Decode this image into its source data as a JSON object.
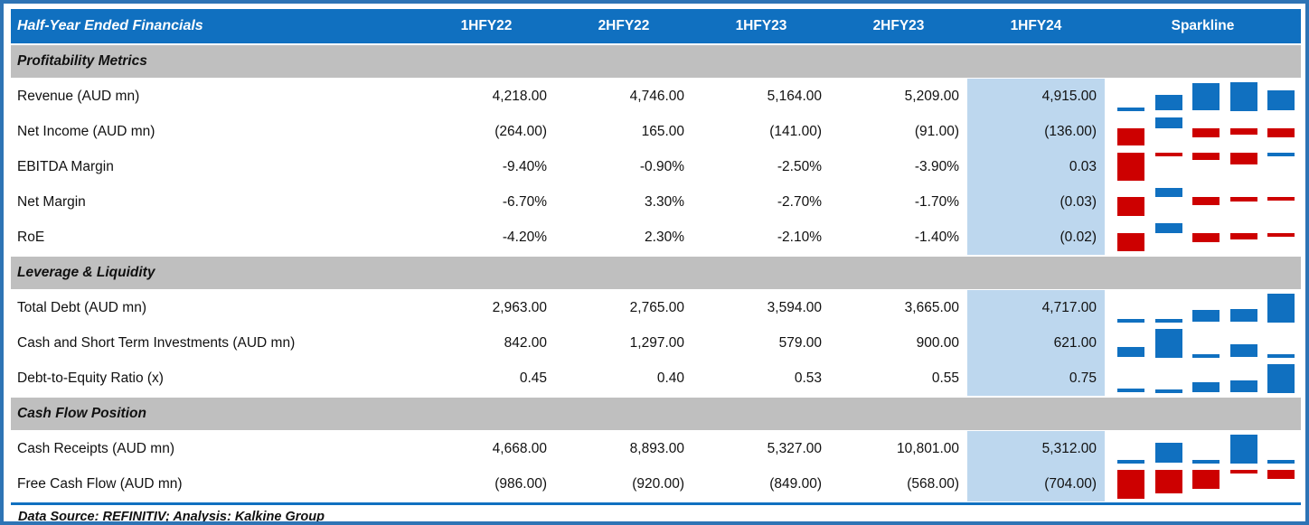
{
  "header": {
    "title": "Half-Year Ended Financials",
    "periods": [
      "1HFY22",
      "2HFY22",
      "1HFY23",
      "2HFY23",
      "1HFY24"
    ],
    "sparkline_label": "Sparkline",
    "highlight_period": "1HFY24"
  },
  "sections": [
    {
      "label": "Profitability Metrics",
      "rows": [
        {
          "label": "Revenue (AUD mn)",
          "display": [
            "4,218.00",
            "4,746.00",
            "5,164.00",
            "5,209.00",
            "4,915.00"
          ],
          "numeric": [
            4218,
            4746,
            5164,
            5209,
            4915
          ]
        },
        {
          "label": "Net Income (AUD mn)",
          "display": [
            "(264.00)",
            "165.00",
            "(141.00)",
            "(91.00)",
            "(136.00)"
          ],
          "numeric": [
            -264,
            165,
            -141,
            -91,
            -136
          ]
        },
        {
          "label": "EBITDA Margin",
          "display": [
            "-9.40%",
            "-0.90%",
            "-2.50%",
            "-3.90%",
            "0.03"
          ],
          "numeric": [
            -9.4,
            -0.9,
            -2.5,
            -3.9,
            0.03
          ]
        },
        {
          "label": "Net Margin",
          "display": [
            "-6.70%",
            "3.30%",
            "-2.70%",
            "-1.70%",
            "(0.03)"
          ],
          "numeric": [
            -6.7,
            3.3,
            -2.7,
            -1.7,
            -0.03
          ]
        },
        {
          "label": "RoE",
          "display": [
            "-4.20%",
            "2.30%",
            "-2.10%",
            "-1.40%",
            "(0.02)"
          ],
          "numeric": [
            -4.2,
            2.3,
            -2.1,
            -1.4,
            -0.02
          ]
        }
      ]
    },
    {
      "label": "Leverage & Liquidity",
      "rows": [
        {
          "label": "Total Debt (AUD mn)",
          "display": [
            "2,963.00",
            "2,765.00",
            "3,594.00",
            "3,665.00",
            "4,717.00"
          ],
          "numeric": [
            2963,
            2765,
            3594,
            3665,
            4717
          ]
        },
        {
          "label": "Cash and Short Term Investments (AUD mn)",
          "display": [
            "842.00",
            "1,297.00",
            "579.00",
            "900.00",
            "621.00"
          ],
          "numeric": [
            842,
            1297,
            579,
            900,
            621
          ]
        },
        {
          "label": "Debt-to-Equity Ratio (x)",
          "display": [
            "0.45",
            "0.40",
            "0.53",
            "0.55",
            "0.75"
          ],
          "numeric": [
            0.45,
            0.4,
            0.53,
            0.55,
            0.75
          ]
        }
      ]
    },
    {
      "label": "Cash Flow Position",
      "rows": [
        {
          "label": "Cash Receipts (AUD mn)",
          "display": [
            "4,668.00",
            "8,893.00",
            "5,327.00",
            "10,801.00",
            "5,312.00"
          ],
          "numeric": [
            4668,
            8893,
            5327,
            10801,
            5312
          ]
        },
        {
          "label": "Free Cash Flow (AUD mn)",
          "display": [
            "(986.00)",
            "(920.00)",
            "(849.00)",
            "(568.00)",
            "(704.00)"
          ],
          "numeric": [
            -986,
            -920,
            -849,
            -568,
            -704
          ]
        }
      ]
    }
  ],
  "footer": {
    "note": "Data Source: REFINITIV; Analysis: Kalkine Group"
  },
  "colors": {
    "header_bg": "#1070C0",
    "section_bg": "#BFBFBF",
    "highlight_bg": "#BDD7EE",
    "spark_positive": "#1070C0",
    "spark_negative": "#CD0000",
    "outer_border": "#2E74B5"
  },
  "chart_data": {
    "type": "table",
    "title": "Half-Year Ended Financials",
    "columns": [
      "1HFY22",
      "2HFY22",
      "1HFY23",
      "2HFY23",
      "1HFY24"
    ],
    "sparkline_type": "bar",
    "sparkline_colors": {
      "positive": "#1070C0",
      "negative": "#CD0000"
    },
    "series": [
      {
        "name": "Revenue (AUD mn)",
        "section": "Profitability Metrics",
        "values": [
          4218,
          4746,
          5164,
          5209,
          4915
        ]
      },
      {
        "name": "Net Income (AUD mn)",
        "section": "Profitability Metrics",
        "values": [
          -264,
          165,
          -141,
          -91,
          -136
        ]
      },
      {
        "name": "EBITDA Margin (%)",
        "section": "Profitability Metrics",
        "values": [
          -9.4,
          -0.9,
          -2.5,
          -3.9,
          0.03
        ]
      },
      {
        "name": "Net Margin (%)",
        "section": "Profitability Metrics",
        "values": [
          -6.7,
          3.3,
          -2.7,
          -1.7,
          -0.03
        ]
      },
      {
        "name": "RoE (%)",
        "section": "Profitability Metrics",
        "values": [
          -4.2,
          2.3,
          -2.1,
          -1.4,
          -0.02
        ]
      },
      {
        "name": "Total Debt (AUD mn)",
        "section": "Leverage & Liquidity",
        "values": [
          2963,
          2765,
          3594,
          3665,
          4717
        ]
      },
      {
        "name": "Cash and Short Term Investments (AUD mn)",
        "section": "Leverage & Liquidity",
        "values": [
          842,
          1297,
          579,
          900,
          621
        ]
      },
      {
        "name": "Debt-to-Equity Ratio (x)",
        "section": "Leverage & Liquidity",
        "values": [
          0.45,
          0.4,
          0.53,
          0.55,
          0.75
        ]
      },
      {
        "name": "Cash Receipts (AUD mn)",
        "section": "Cash Flow Position",
        "values": [
          4668,
          8893,
          5327,
          10801,
          5312
        ]
      },
      {
        "name": "Free Cash Flow (AUD mn)",
        "section": "Cash Flow Position",
        "values": [
          -986,
          -920,
          -849,
          -568,
          -704
        ]
      }
    ],
    "footnote": "Data Source: REFINITIV; Analysis: Kalkine Group"
  }
}
